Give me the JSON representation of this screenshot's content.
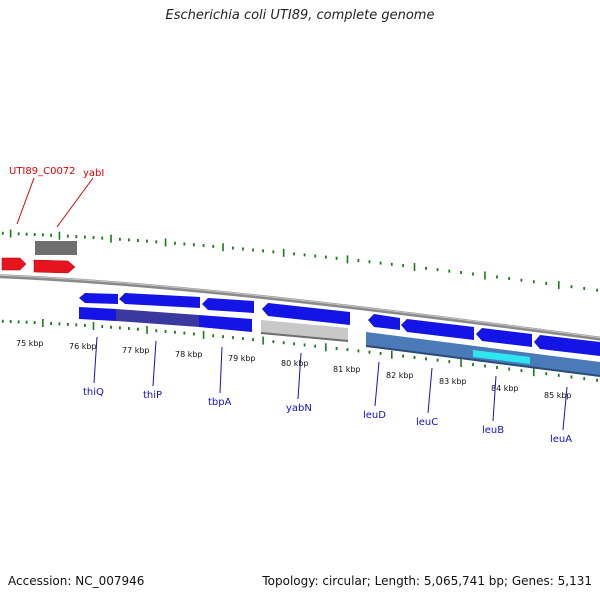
{
  "title": "Escherichia coli UTI89, complete genome",
  "footer": {
    "accession": "Accession: NC_007946",
    "topology": "Topology: circular; Length: 5,065,741 bp; Genes: 5,131"
  },
  "colors": {
    "gene_blue": "#1414e6",
    "gene_red": "#e6141e",
    "gene_gray": "#6e6e6e",
    "backbone": "#8a8a8a",
    "tick_green": "#1a7a1a",
    "label_blue": "#1010cc",
    "label_red": "#dd0000",
    "highlight_cyan": "#2ee6f0",
    "band_steel": "#4a7ab8"
  },
  "kbp_labels": [
    "75 kbp",
    "76 kbp",
    "77 kbp",
    "78 kbp",
    "79 kbp",
    "80 kbp",
    "81 kbp",
    "82 kbp",
    "83 kbp",
    "84 kbp",
    "85 kbp"
  ],
  "gene_labels": {
    "upper_red": [
      "UTI89_C0072",
      "yabI"
    ],
    "lower_blue": [
      "thiQ",
      "thiP",
      "tbpA",
      "yabN",
      "leuD",
      "leuC",
      "leuB",
      "leuA"
    ]
  }
}
